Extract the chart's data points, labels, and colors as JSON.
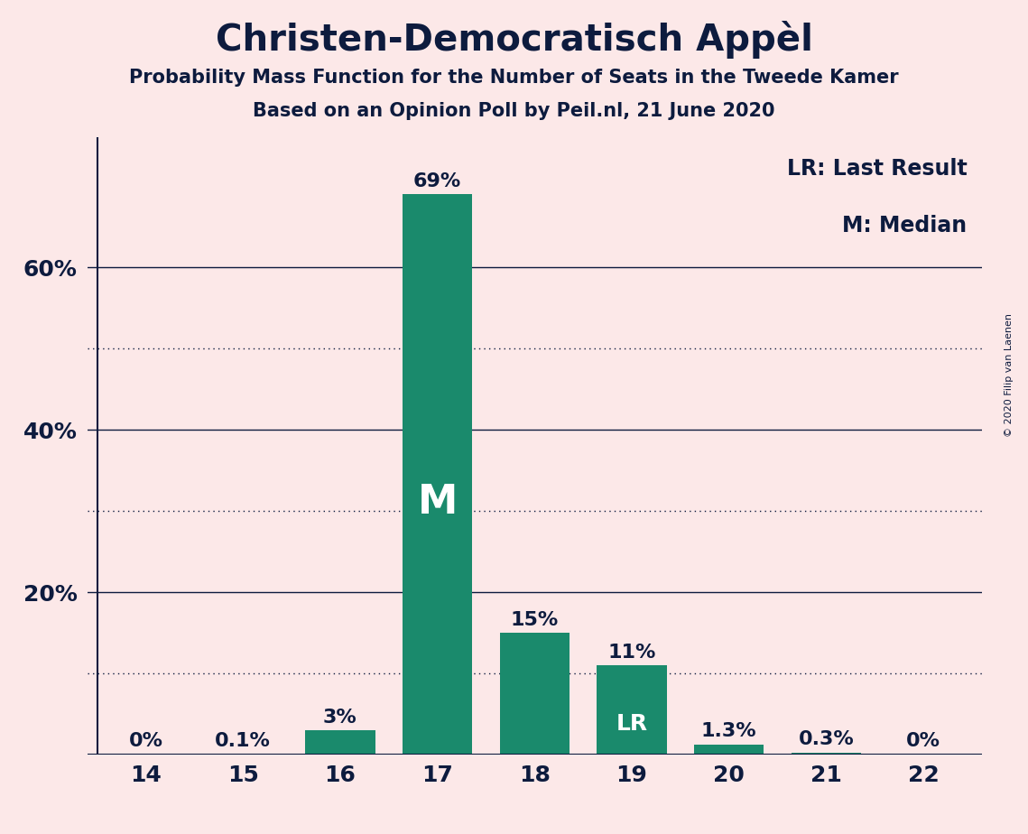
{
  "title": "Christen-Democratisch Appèl",
  "subtitle1": "Probability Mass Function for the Number of Seats in the Tweede Kamer",
  "subtitle2": "Based on an Opinion Poll by Peil.nl, 21 June 2020",
  "copyright": "© 2020 Filip van Laenen",
  "categories": [
    14,
    15,
    16,
    17,
    18,
    19,
    20,
    21,
    22
  ],
  "values": [
    0.0,
    0.1,
    3.0,
    69.0,
    15.0,
    11.0,
    1.3,
    0.3,
    0.0
  ],
  "labels": [
    "0%",
    "0.1%",
    "3%",
    "69%",
    "15%",
    "11%",
    "1.3%",
    "0.3%",
    "0%"
  ],
  "bar_color": "#1a8a6c",
  "background_color": "#fce8e8",
  "text_color": "#0d1b3e",
  "white_color": "#ffffff",
  "median_idx": 3,
  "lr_idx": 5,
  "legend_lr": "LR: Last Result",
  "legend_m": "M: Median",
  "solid_yticks": [
    20,
    40,
    60
  ],
  "dotted_yticks": [
    10,
    30,
    50
  ],
  "ylim": [
    0,
    76
  ],
  "bar_width": 0.72
}
